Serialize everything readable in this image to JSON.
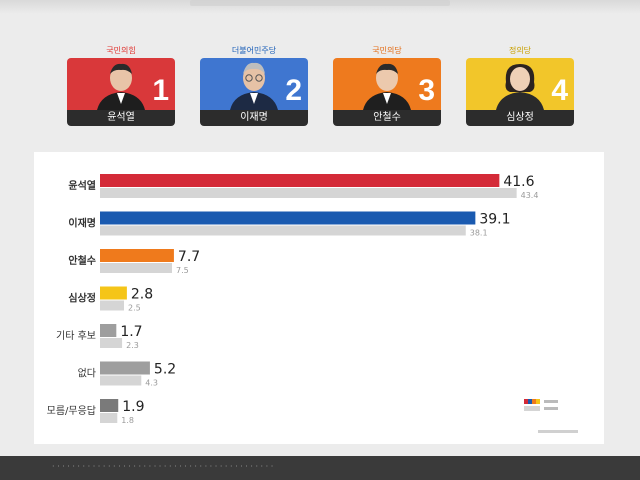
{
  "candidates": [
    {
      "party": "국민의힘",
      "name": "윤석열",
      "number": "1",
      "party_color": "#e0322e",
      "bg_color": "#d9383a"
    },
    {
      "party": "더불어민주당",
      "name": "이재명",
      "number": "2",
      "party_color": "#1c5fb8",
      "bg_color": "#3f76d0"
    },
    {
      "party": "국민의당",
      "name": "안철수",
      "number": "3",
      "party_color": "#e36a12",
      "bg_color": "#ee7a1e"
    },
    {
      "party": "정의당",
      "name": "심상정",
      "number": "4",
      "party_color": "#c9a000",
      "bg_color": "#f2c62a"
    }
  ],
  "chart_data": {
    "type": "bar",
    "orientation": "horizontal",
    "categories": [
      "윤석열",
      "이재명",
      "안철수",
      "심상정",
      "기타 후보",
      "없다",
      "모름/무응답"
    ],
    "series": [
      {
        "values": [
          41.6,
          39.1,
          7.7,
          2.8,
          1.7,
          5.2,
          1.9
        ]
      },
      {
        "values": [
          43.4,
          38.1,
          7.5,
          2.5,
          2.3,
          4.3,
          1.8
        ]
      }
    ],
    "bar_colors": [
      "#d42a38",
      "#1a5ab0",
      "#ef7a1c",
      "#f5c518",
      "#9e9e9e",
      "#9e9e9e",
      "#7a7a7a"
    ],
    "secondary_color": "#d5d5d5",
    "xlim": [
      0,
      45
    ],
    "legend": {
      "position": "bottom-right",
      "swatches": [
        "#d42a38",
        "#1a5ab0",
        "#ef7a1c",
        "#f5c518",
        "#d5d5d5"
      ]
    }
  }
}
